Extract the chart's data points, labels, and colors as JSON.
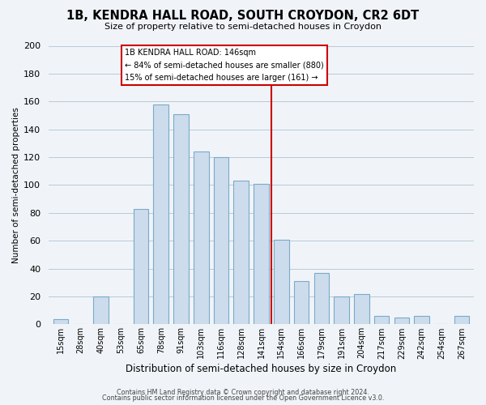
{
  "title": "1B, KENDRA HALL ROAD, SOUTH CROYDON, CR2 6DT",
  "subtitle": "Size of property relative to semi-detached houses in Croydon",
  "xlabel": "Distribution of semi-detached houses by size in Croydon",
  "ylabel": "Number of semi-detached properties",
  "footer_lines": [
    "Contains HM Land Registry data © Crown copyright and database right 2024.",
    "Contains public sector information licensed under the Open Government Licence v3.0."
  ],
  "bar_labels": [
    "15sqm",
    "28sqm",
    "40sqm",
    "53sqm",
    "65sqm",
    "78sqm",
    "91sqm",
    "103sqm",
    "116sqm",
    "128sqm",
    "141sqm",
    "154sqm",
    "166sqm",
    "179sqm",
    "191sqm",
    "204sqm",
    "217sqm",
    "229sqm",
    "242sqm",
    "254sqm",
    "267sqm"
  ],
  "bar_values": [
    4,
    0,
    20,
    0,
    83,
    158,
    151,
    124,
    120,
    103,
    101,
    61,
    31,
    37,
    20,
    22,
    6,
    5,
    6,
    0,
    6
  ],
  "bar_color": "#ccdcec",
  "bar_edge_color": "#7aaac8",
  "vline_x_index": 10.5,
  "vline_color": "#cc0000",
  "annotation_box_text_lines": [
    "1B KENDRA HALL ROAD: 146sqm",
    "← 84% of semi-detached houses are smaller (880)",
    "15% of semi-detached houses are larger (161) →"
  ],
  "ylim": [
    0,
    200
  ],
  "yticks": [
    0,
    20,
    40,
    60,
    80,
    100,
    120,
    140,
    160,
    180,
    200
  ],
  "background_color": "#f0f4f8",
  "grid_color": "#b8cad8"
}
